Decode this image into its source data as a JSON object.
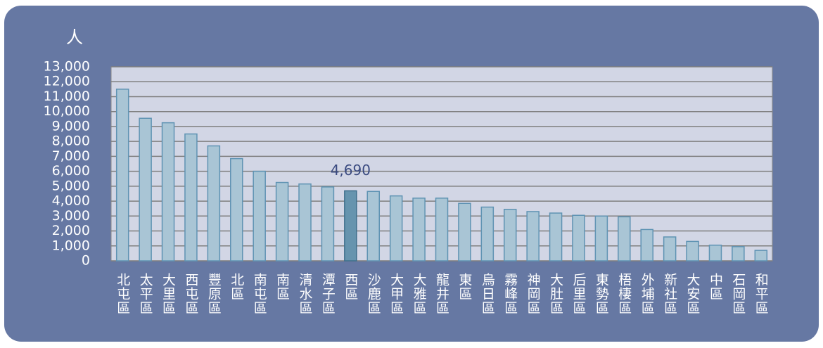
{
  "chart_data": {
    "type": "bar",
    "y_label": "人",
    "categories": [
      "北屯區",
      "太平區",
      "大里區",
      "西屯區",
      "豐原區",
      "北區",
      "南屯區",
      "南區",
      "清水區",
      "潭子區",
      "西區",
      "沙鹿區",
      "大甲區",
      "大雅區",
      "龍井區",
      "東區",
      "烏日區",
      "霧峰區",
      "神岡區",
      "大肚區",
      "后里區",
      "東勢區",
      "梧棲區",
      "外埔區",
      "新社區",
      "大安區",
      "中區",
      "石岡區",
      "和平區"
    ],
    "values": [
      11500,
      9550,
      9250,
      8500,
      7700,
      6850,
      6000,
      5250,
      5150,
      4950,
      4690,
      4650,
      4350,
      4200,
      4200,
      3850,
      3600,
      3450,
      3300,
      3200,
      3050,
      3000,
      2950,
      2100,
      1600,
      1300,
      1050,
      950,
      700
    ],
    "value_labels": [
      null,
      null,
      null,
      null,
      null,
      null,
      null,
      null,
      null,
      null,
      "4,690",
      null,
      null,
      null,
      null,
      null,
      null,
      null,
      null,
      null,
      null,
      null,
      null,
      null,
      null,
      null,
      null,
      null,
      null
    ],
    "colors": [
      "#a9c5d5",
      "#a9c5d5",
      "#a9c5d5",
      "#a9c5d5",
      "#a9c5d5",
      "#a9c5d5",
      "#a9c5d5",
      "#a9c5d5",
      "#a9c5d5",
      "#a9c5d5",
      "#6694ae",
      "#a9c5d5",
      "#a9c5d5",
      "#a9c5d5",
      "#a9c5d5",
      "#a9c5d5",
      "#a9c5d5",
      "#a9c5d5",
      "#a9c5d5",
      "#a9c5d5",
      "#a9c5d5",
      "#a9c5d5",
      "#a9c5d5",
      "#a9c5d5",
      "#a9c5d5",
      "#a9c5d5",
      "#a9c5d5",
      "#a9c5d5",
      "#a9c5d5"
    ],
    "ylim": [
      0,
      13000
    ],
    "yticks": [
      0,
      {
        "value": 1000,
        "label": "1,000"
      },
      {
        "value": 2000,
        "label": "2,000"
      },
      {
        "value": 3000,
        "label": "3,000"
      },
      {
        "value": 4000,
        "label": "4,000"
      },
      {
        "value": 5000,
        "label": "5,000"
      },
      {
        "value": 6000,
        "label": "6,000"
      },
      {
        "value": 7000,
        "label": "7,000"
      },
      {
        "value": 8000,
        "label": "8,000"
      },
      {
        "value": 9000,
        "label": "9,000"
      },
      {
        "value": 10000,
        "label": "10,000"
      },
      {
        "value": 11000,
        "label": "11,000"
      },
      {
        "value": 12000,
        "label": "12,000"
      },
      {
        "value": 13000,
        "label": "13,000"
      }
    ],
    "grid": true
  }
}
